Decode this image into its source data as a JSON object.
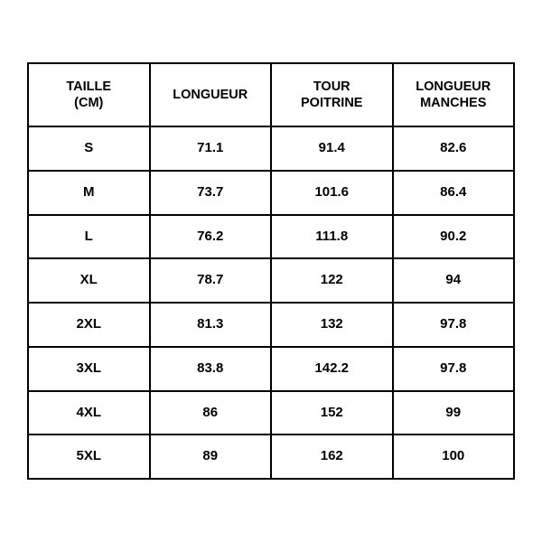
{
  "table": {
    "type": "table",
    "border_color": "#000000",
    "border_width": 2,
    "background_color": "#ffffff",
    "text_color": "#000000",
    "font_weight": 700,
    "header_fontsize": 14.5,
    "cell_fontsize": 15,
    "columns": [
      {
        "line1": "TAILLE",
        "line2": "(CM)",
        "width_pct": 25,
        "align": "center"
      },
      {
        "line1": "LONGUEUR",
        "line2": "",
        "width_pct": 25,
        "align": "center"
      },
      {
        "line1": "TOUR",
        "line2": "POITRINE",
        "width_pct": 25,
        "align": "center"
      },
      {
        "line1": "LONGUEUR",
        "line2": "MANCHES",
        "width_pct": 25,
        "align": "center"
      }
    ],
    "rows": [
      [
        "S",
        "71.1",
        "91.4",
        "82.6"
      ],
      [
        "M",
        "73.7",
        "101.6",
        "86.4"
      ],
      [
        "L",
        "76.2",
        "111.8",
        "90.2"
      ],
      [
        "XL",
        "78.7",
        "122",
        "94"
      ],
      [
        "2XL",
        "81.3",
        "132",
        "97.8"
      ],
      [
        "3XL",
        "83.8",
        "142.2",
        "97.8"
      ],
      [
        "4XL",
        "86",
        "152",
        "99"
      ],
      [
        "5XL",
        "89",
        "162",
        "100"
      ]
    ]
  }
}
